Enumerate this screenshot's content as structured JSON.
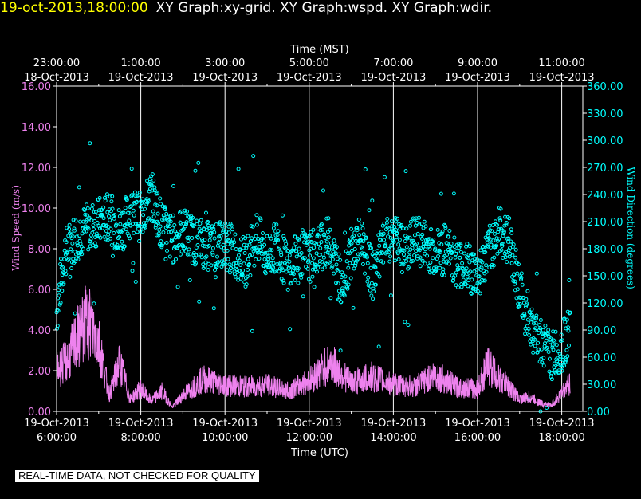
{
  "header": {
    "timestamp": "19-oct-2013,18:00:00",
    "graphs": "XY Graph:xy-grid.  XY Graph:wspd.  XY Graph:wdir."
  },
  "disclaimer": "REAL-TIME DATA, NOT CHECKED FOR QUALITY",
  "colors": {
    "background": "#000000",
    "axes": "#ffffff",
    "wind_speed": "#ee82ee",
    "wind_direction": "#00ffff",
    "header_timestamp": "#ffff00"
  },
  "chart_data": {
    "type": "line",
    "top_axis": {
      "title": "Time (MST)",
      "ticks": [
        {
          "time": "23:00:00",
          "date": "18-Oct-2013"
        },
        {
          "time": "1:00:00",
          "date": "19-Oct-2013"
        },
        {
          "time": "3:00:00",
          "date": "19-Oct-2013"
        },
        {
          "time": "5:00:00",
          "date": "19-Oct-2013"
        },
        {
          "time": "7:00:00",
          "date": "19-Oct-2013"
        },
        {
          "time": "9:00:00",
          "date": "19-Oct-2013"
        },
        {
          "time": "11:00:00",
          "date": "19-Oct-2013"
        }
      ]
    },
    "bottom_axis": {
      "title": "Time (UTC)",
      "ticks": [
        {
          "date": "19-Oct-2013",
          "time": "6:00:00"
        },
        {
          "date": "19-Oct-2013",
          "time": "8:00:00"
        },
        {
          "date": "19-Oct-2013",
          "time": "10:00:00"
        },
        {
          "date": "19-Oct-2013",
          "time": "12:00:00"
        },
        {
          "date": "19-Oct-2013",
          "time": "14:00:00"
        },
        {
          "date": "19-Oct-2013",
          "time": "16:00:00"
        },
        {
          "date": "19-Oct-2013",
          "time": "18:00:00"
        }
      ],
      "range_utc_hours": [
        6,
        18.5
      ],
      "grid": true
    },
    "left_axis": {
      "title": "Wind Speed (m/s)",
      "ylim": [
        0,
        16
      ],
      "ticks": [
        "0.00",
        "2.00",
        "4.00",
        "6.00",
        "8.00",
        "10.00",
        "12.00",
        "14.00",
        "16.00"
      ]
    },
    "right_axis": {
      "title": "Wind Direction (degrees)",
      "ylim": [
        0,
        360
      ],
      "ticks": [
        "0.00",
        "30.00",
        "60.00",
        "90.00",
        "120.00",
        "150.00",
        "180.00",
        "210.00",
        "240.00",
        "270.00",
        "300.00",
        "330.00",
        "360.00"
      ]
    },
    "series": [
      {
        "name": "Wind Speed",
        "axis": "left",
        "style": "line",
        "x_utc_hours": [
          6.0,
          6.25,
          6.5,
          6.75,
          7.0,
          7.25,
          7.5,
          7.75,
          8.0,
          8.25,
          8.5,
          8.75,
          9.0,
          9.5,
          10.0,
          10.5,
          11.0,
          11.5,
          12.0,
          12.5,
          13.0,
          13.5,
          14.0,
          14.5,
          15.0,
          15.5,
          16.0,
          16.25,
          16.5,
          16.75,
          17.0,
          17.25,
          17.5,
          17.75,
          18.0,
          18.2
        ],
        "values": [
          2.0,
          2.5,
          3.6,
          4.5,
          3.4,
          0.8,
          2.4,
          0.6,
          1.1,
          0.5,
          1.0,
          0.2,
          0.8,
          1.6,
          1.3,
          1.2,
          1.3,
          1.0,
          1.5,
          2.4,
          1.4,
          1.7,
          1.3,
          1.2,
          1.8,
          1.2,
          1.1,
          2.3,
          1.6,
          1.2,
          0.6,
          0.7,
          0.4,
          0.3,
          0.9,
          1.4
        ]
      },
      {
        "name": "Wind Direction",
        "axis": "right",
        "style": "markers",
        "x_utc_hours": [
          6.0,
          6.2,
          6.4,
          6.6,
          6.8,
          7.0,
          7.25,
          7.5,
          7.75,
          8.0,
          8.25,
          8.5,
          8.75,
          9.0,
          9.25,
          9.5,
          9.75,
          10.0,
          10.25,
          10.5,
          10.75,
          11.0,
          11.25,
          11.5,
          11.75,
          12.0,
          12.25,
          12.5,
          12.75,
          13.0,
          13.25,
          13.5,
          13.75,
          14.0,
          14.25,
          14.5,
          14.75,
          15.0,
          15.25,
          15.5,
          15.75,
          16.0,
          16.25,
          16.5,
          16.75,
          17.0,
          17.25,
          17.5,
          17.75,
          18.0,
          18.2
        ],
        "values": [
          110,
          175,
          190,
          200,
          205,
          210,
          215,
          200,
          220,
          215,
          240,
          205,
          190,
          200,
          190,
          185,
          180,
          185,
          175,
          165,
          195,
          170,
          185,
          155,
          175,
          170,
          180,
          190,
          140,
          175,
          190,
          150,
          180,
          195,
          175,
          190,
          185,
          175,
          180,
          165,
          160,
          150,
          175,
          200,
          190,
          135,
          90,
          80,
          60,
          70,
          90
        ]
      }
    ]
  }
}
